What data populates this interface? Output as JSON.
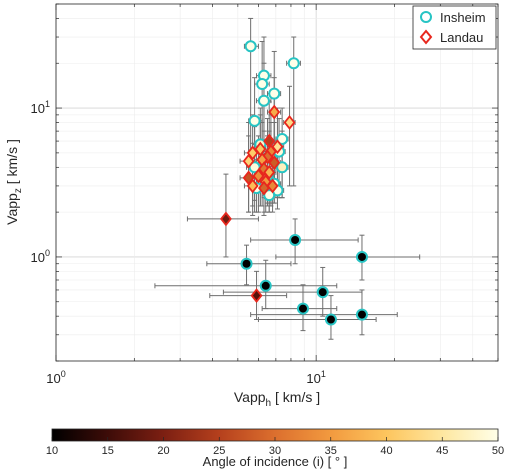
{
  "chart_data": {
    "type": "scatter",
    "x_axis": {
      "label_main": "Vapp",
      "label_sub": "h",
      "label_rest": " [ km/s ]",
      "scale": "log",
      "range": [
        1,
        50
      ],
      "tick_labels": [
        {
          "value": 1,
          "base": "10",
          "exp": "0"
        },
        {
          "value": 10,
          "base": "10",
          "exp": "1"
        }
      ]
    },
    "y_axis": {
      "label_main": "Vapp",
      "label_sub": "z",
      "label_rest": " [ km/s ]",
      "scale": "log",
      "range": [
        0.2,
        50
      ],
      "tick_labels": [
        {
          "value": 1,
          "base": "10",
          "exp": "0"
        },
        {
          "value": 10,
          "base": "10",
          "exp": "1"
        }
      ]
    },
    "grid": true,
    "legend": {
      "placement": "top-right",
      "entries": [
        {
          "name": "Insheim",
          "marker": "circle",
          "edge_color": "#27c4c4"
        },
        {
          "name": "Landau",
          "marker": "diamond",
          "edge_color": "#e8271d"
        }
      ]
    },
    "colorbar": {
      "label": "Angle of incidence (i) [ ° ]",
      "range": [
        10,
        50
      ],
      "ticks": [
        "10",
        "15",
        "20",
        "25",
        "30",
        "35",
        "40",
        "45",
        "50"
      ],
      "colors": [
        "#000000",
        "#3d0c08",
        "#7c1f12",
        "#b5401d",
        "#dc6f2e",
        "#f29a3f",
        "#fdc55e",
        "#fee7a0",
        "#ffffe8"
      ]
    },
    "series": [
      {
        "name": "Insheim",
        "points": [
          {
            "x": 5.6,
            "y": 26,
            "xerr": [
              5.3,
              6.0
            ],
            "yerr": [
              4.4,
              40
            ],
            "angle": 50
          },
          {
            "x": 6.3,
            "y": 16.5,
            "xerr": [
              5.9,
              6.7
            ],
            "yerr": [
              3.2,
              30
            ],
            "angle": 50
          },
          {
            "x": 6.2,
            "y": 14.5,
            "xerr": [
              5.8,
              6.6
            ],
            "yerr": [
              3.0,
              28
            ],
            "angle": 50
          },
          {
            "x": 8.2,
            "y": 20,
            "xerr": [
              7.7,
              8.7
            ],
            "yerr": [
              3.0,
              30
            ],
            "angle": 50
          },
          {
            "x": 6.9,
            "y": 12.5,
            "xerr": [
              6.5,
              7.3
            ],
            "yerr": [
              2.8,
              24
            ],
            "angle": 50
          },
          {
            "x": 6.3,
            "y": 11.2,
            "xerr": [
              5.9,
              6.7
            ],
            "yerr": [
              2.5,
              20
            ],
            "angle": 50
          },
          {
            "x": 5.8,
            "y": 8.2,
            "xerr": [
              5.5,
              6.2
            ],
            "yerr": [
              2.4,
              16
            ],
            "angle": 50
          },
          {
            "x": 7.4,
            "y": 6.2,
            "xerr": [
              7.0,
              7.8
            ],
            "yerr": [
              2.5,
              10
            ],
            "angle": 50
          },
          {
            "x": 6.1,
            "y": 5.7,
            "xerr": [
              5.7,
              6.5
            ],
            "yerr": [
              2.2,
              9
            ],
            "angle": 48
          },
          {
            "x": 7.2,
            "y": 5.1,
            "xerr": [
              6.8,
              7.6
            ],
            "yerr": [
              2.5,
              8.5
            ],
            "angle": 49
          },
          {
            "x": 6.7,
            "y": 4.6,
            "xerr": [
              6.3,
              7.1
            ],
            "yerr": [
              2.2,
              8
            ],
            "angle": 48
          },
          {
            "x": 7.4,
            "y": 4.0,
            "xerr": [
              7.0,
              7.8
            ],
            "yerr": [
              2.5,
              7
            ],
            "angle": 47
          },
          {
            "x": 5.8,
            "y": 4.0,
            "xerr": [
              5.4,
              6.2
            ],
            "yerr": [
              2.0,
              7.5
            ],
            "angle": 49
          },
          {
            "x": 6.5,
            "y": 3.5,
            "xerr": [
              6.1,
              6.9
            ],
            "yerr": [
              2.3,
              6.5
            ],
            "angle": 49
          },
          {
            "x": 6.9,
            "y": 3.1,
            "xerr": [
              6.5,
              7.3
            ],
            "yerr": [
              2.3,
              6
            ],
            "angle": 50
          },
          {
            "x": 5.9,
            "y": 2.9,
            "xerr": [
              5.5,
              6.3
            ],
            "yerr": [
              2.0,
              5.5
            ],
            "angle": 50
          },
          {
            "x": 7.1,
            "y": 2.8,
            "xerr": [
              6.7,
              7.5
            ],
            "yerr": [
              2.1,
              5.0
            ],
            "angle": 50
          },
          {
            "x": 6.6,
            "y": 2.6,
            "xerr": [
              6.2,
              7.0
            ],
            "yerr": [
              2.0,
              4.8
            ],
            "angle": 50
          },
          {
            "x": 8.3,
            "y": 1.3,
            "xerr": [
              5.6,
              14.5
            ],
            "yerr": [
              0.9,
              1.8
            ],
            "angle": 10
          },
          {
            "x": 15,
            "y": 1.0,
            "xerr": [
              7.0,
              25
            ],
            "yerr": [
              0.7,
              1.4
            ],
            "angle": 10
          },
          {
            "x": 5.4,
            "y": 0.9,
            "xerr": [
              3.8,
              8.0
            ],
            "yerr": [
              0.65,
              1.2
            ],
            "angle": 10
          },
          {
            "x": 6.4,
            "y": 0.64,
            "xerr": [
              2.4,
              12
            ],
            "yerr": [
              0.45,
              0.95
            ],
            "angle": 10
          },
          {
            "x": 10.6,
            "y": 0.58,
            "xerr": [
              4.4,
              15
            ],
            "yerr": [
              0.4,
              0.85
            ],
            "angle": 10
          },
          {
            "x": 8.9,
            "y": 0.45,
            "xerr": [
              6.2,
              12
            ],
            "yerr": [
              0.32,
              0.65
            ],
            "angle": 10
          },
          {
            "x": 11.4,
            "y": 0.38,
            "xerr": [
              6.0,
              17
            ],
            "yerr": [
              0.28,
              0.55
            ],
            "angle": 10
          },
          {
            "x": 15,
            "y": 0.41,
            "xerr": [
              5.6,
              20.5
            ],
            "yerr": [
              0.3,
              0.6
            ],
            "angle": 10
          }
        ]
      },
      {
        "name": "Landau",
        "points": [
          {
            "x": 6.9,
            "y": 9.4,
            "xerr": [
              6.5,
              7.3
            ],
            "yerr": [
              3.0,
              16
            ],
            "angle": 37
          },
          {
            "x": 7.9,
            "y": 8.0,
            "xerr": [
              7.5,
              8.3
            ],
            "yerr": [
              3.0,
              14
            ],
            "angle": 43
          },
          {
            "x": 6.6,
            "y": 6.0,
            "xerr": [
              6.2,
              7.0
            ],
            "yerr": [
              2.5,
              11
            ],
            "angle": 25
          },
          {
            "x": 7.1,
            "y": 5.5,
            "xerr": [
              6.7,
              7.5
            ],
            "yerr": [
              2.5,
              10
            ],
            "angle": 44
          },
          {
            "x": 6.1,
            "y": 5.3,
            "xerr": [
              5.7,
              6.5
            ],
            "yerr": [
              2.2,
              10
            ],
            "angle": 40
          },
          {
            "x": 6.7,
            "y": 5.1,
            "xerr": [
              6.3,
              7.1
            ],
            "yerr": [
              2.3,
              9
            ],
            "angle": 33
          },
          {
            "x": 5.7,
            "y": 5.0,
            "xerr": [
              5.3,
              6.1
            ],
            "yerr": [
              2.2,
              9
            ],
            "angle": 41
          },
          {
            "x": 6.5,
            "y": 4.7,
            "xerr": [
              6.1,
              6.9
            ],
            "yerr": [
              2.2,
              8.5
            ],
            "angle": 30
          },
          {
            "x": 6.2,
            "y": 4.5,
            "xerr": [
              5.8,
              6.6
            ],
            "yerr": [
              2.2,
              8
            ],
            "angle": 36
          },
          {
            "x": 5.5,
            "y": 4.4,
            "xerr": [
              5.1,
              5.9
            ],
            "yerr": [
              2.0,
              8
            ],
            "angle": 42
          },
          {
            "x": 6.9,
            "y": 4.3,
            "xerr": [
              6.5,
              7.3
            ],
            "yerr": [
              2.3,
              8
            ],
            "angle": 28
          },
          {
            "x": 6.3,
            "y": 3.9,
            "xerr": [
              5.9,
              6.7
            ],
            "yerr": [
              2.0,
              7
            ],
            "angle": 31
          },
          {
            "x": 6.6,
            "y": 3.7,
            "xerr": [
              6.2,
              7.0
            ],
            "yerr": [
              2.0,
              7
            ],
            "angle": 38
          },
          {
            "x": 6.0,
            "y": 3.5,
            "xerr": [
              5.6,
              6.4
            ],
            "yerr": [
              2.0,
              6.5
            ],
            "angle": 34
          },
          {
            "x": 5.5,
            "y": 3.4,
            "xerr": [
              5.1,
              5.9
            ],
            "yerr": [
              2.0,
              6.5
            ],
            "angle": 27
          },
          {
            "x": 6.4,
            "y": 3.2,
            "xerr": [
              6.0,
              6.8
            ],
            "yerr": [
              2.0,
              6
            ],
            "angle": 35
          },
          {
            "x": 5.7,
            "y": 3.0,
            "xerr": [
              5.3,
              6.1
            ],
            "yerr": [
              1.9,
              5.8
            ],
            "angle": 39
          },
          {
            "x": 6.8,
            "y": 3.0,
            "xerr": [
              6.4,
              7.2
            ],
            "yerr": [
              2.0,
              5.8
            ],
            "angle": 33
          },
          {
            "x": 6.3,
            "y": 2.9,
            "xerr": [
              5.9,
              6.7
            ],
            "yerr": [
              1.9,
              5.5
            ],
            "angle": 29
          },
          {
            "x": 4.5,
            "y": 1.8,
            "xerr": [
              3.2,
              6.0
            ],
            "yerr": [
              1.0,
              3.6
            ],
            "angle": 19
          },
          {
            "x": 5.9,
            "y": 0.55,
            "xerr": [
              3.9,
              7.7
            ],
            "yerr": [
              0.38,
              0.8
            ],
            "angle": 17
          }
        ]
      }
    ]
  }
}
